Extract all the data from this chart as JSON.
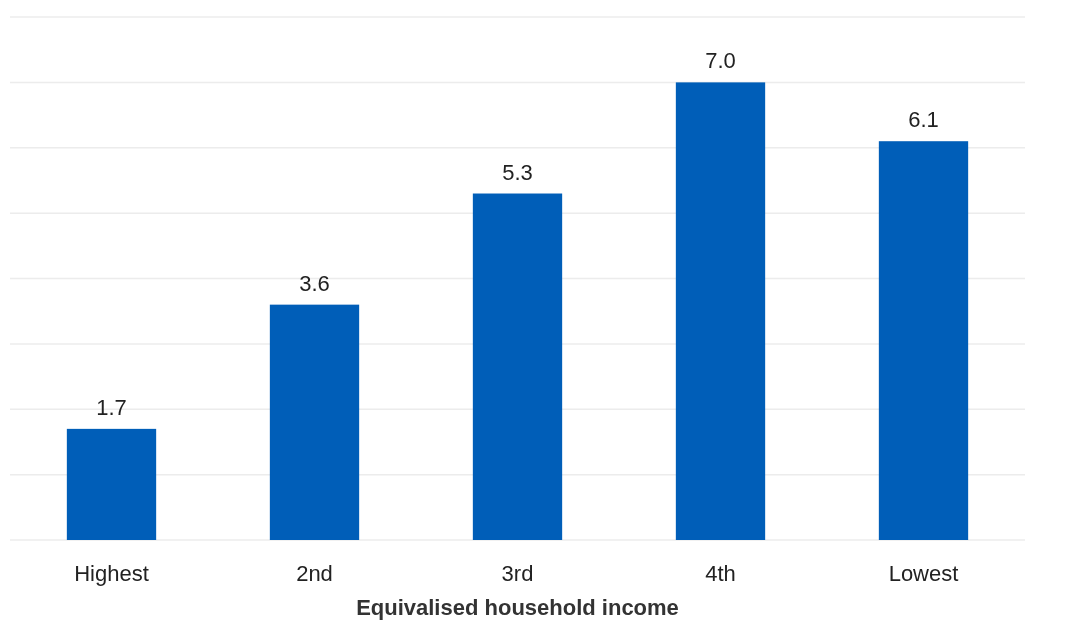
{
  "chart_data": {
    "type": "bar",
    "xlabel": "Equivalised household income",
    "categories": [
      "Highest",
      "2nd",
      "3rd",
      "4th",
      "Lowest"
    ],
    "values": [
      1.7,
      3.6,
      5.3,
      7.0,
      6.1
    ],
    "color": "#005eb8",
    "value_labels": [
      "1.7",
      "3.6",
      "5.3",
      "7.0",
      "6.1"
    ],
    "ylim": [
      0,
      8
    ],
    "yticks": [
      {
        "value": 0,
        "label": null
      },
      {
        "value": 1,
        "label": null
      },
      {
        "value": 2,
        "label": null
      },
      {
        "value": 3,
        "label": null
      },
      {
        "value": 4,
        "label": null
      },
      {
        "value": 5,
        "label": null
      },
      {
        "value": 6,
        "label": null
      },
      {
        "value": 7,
        "label": null
      },
      {
        "value": 8,
        "label": null
      }
    ],
    "grid": "y",
    "tick_labels": "x"
  }
}
